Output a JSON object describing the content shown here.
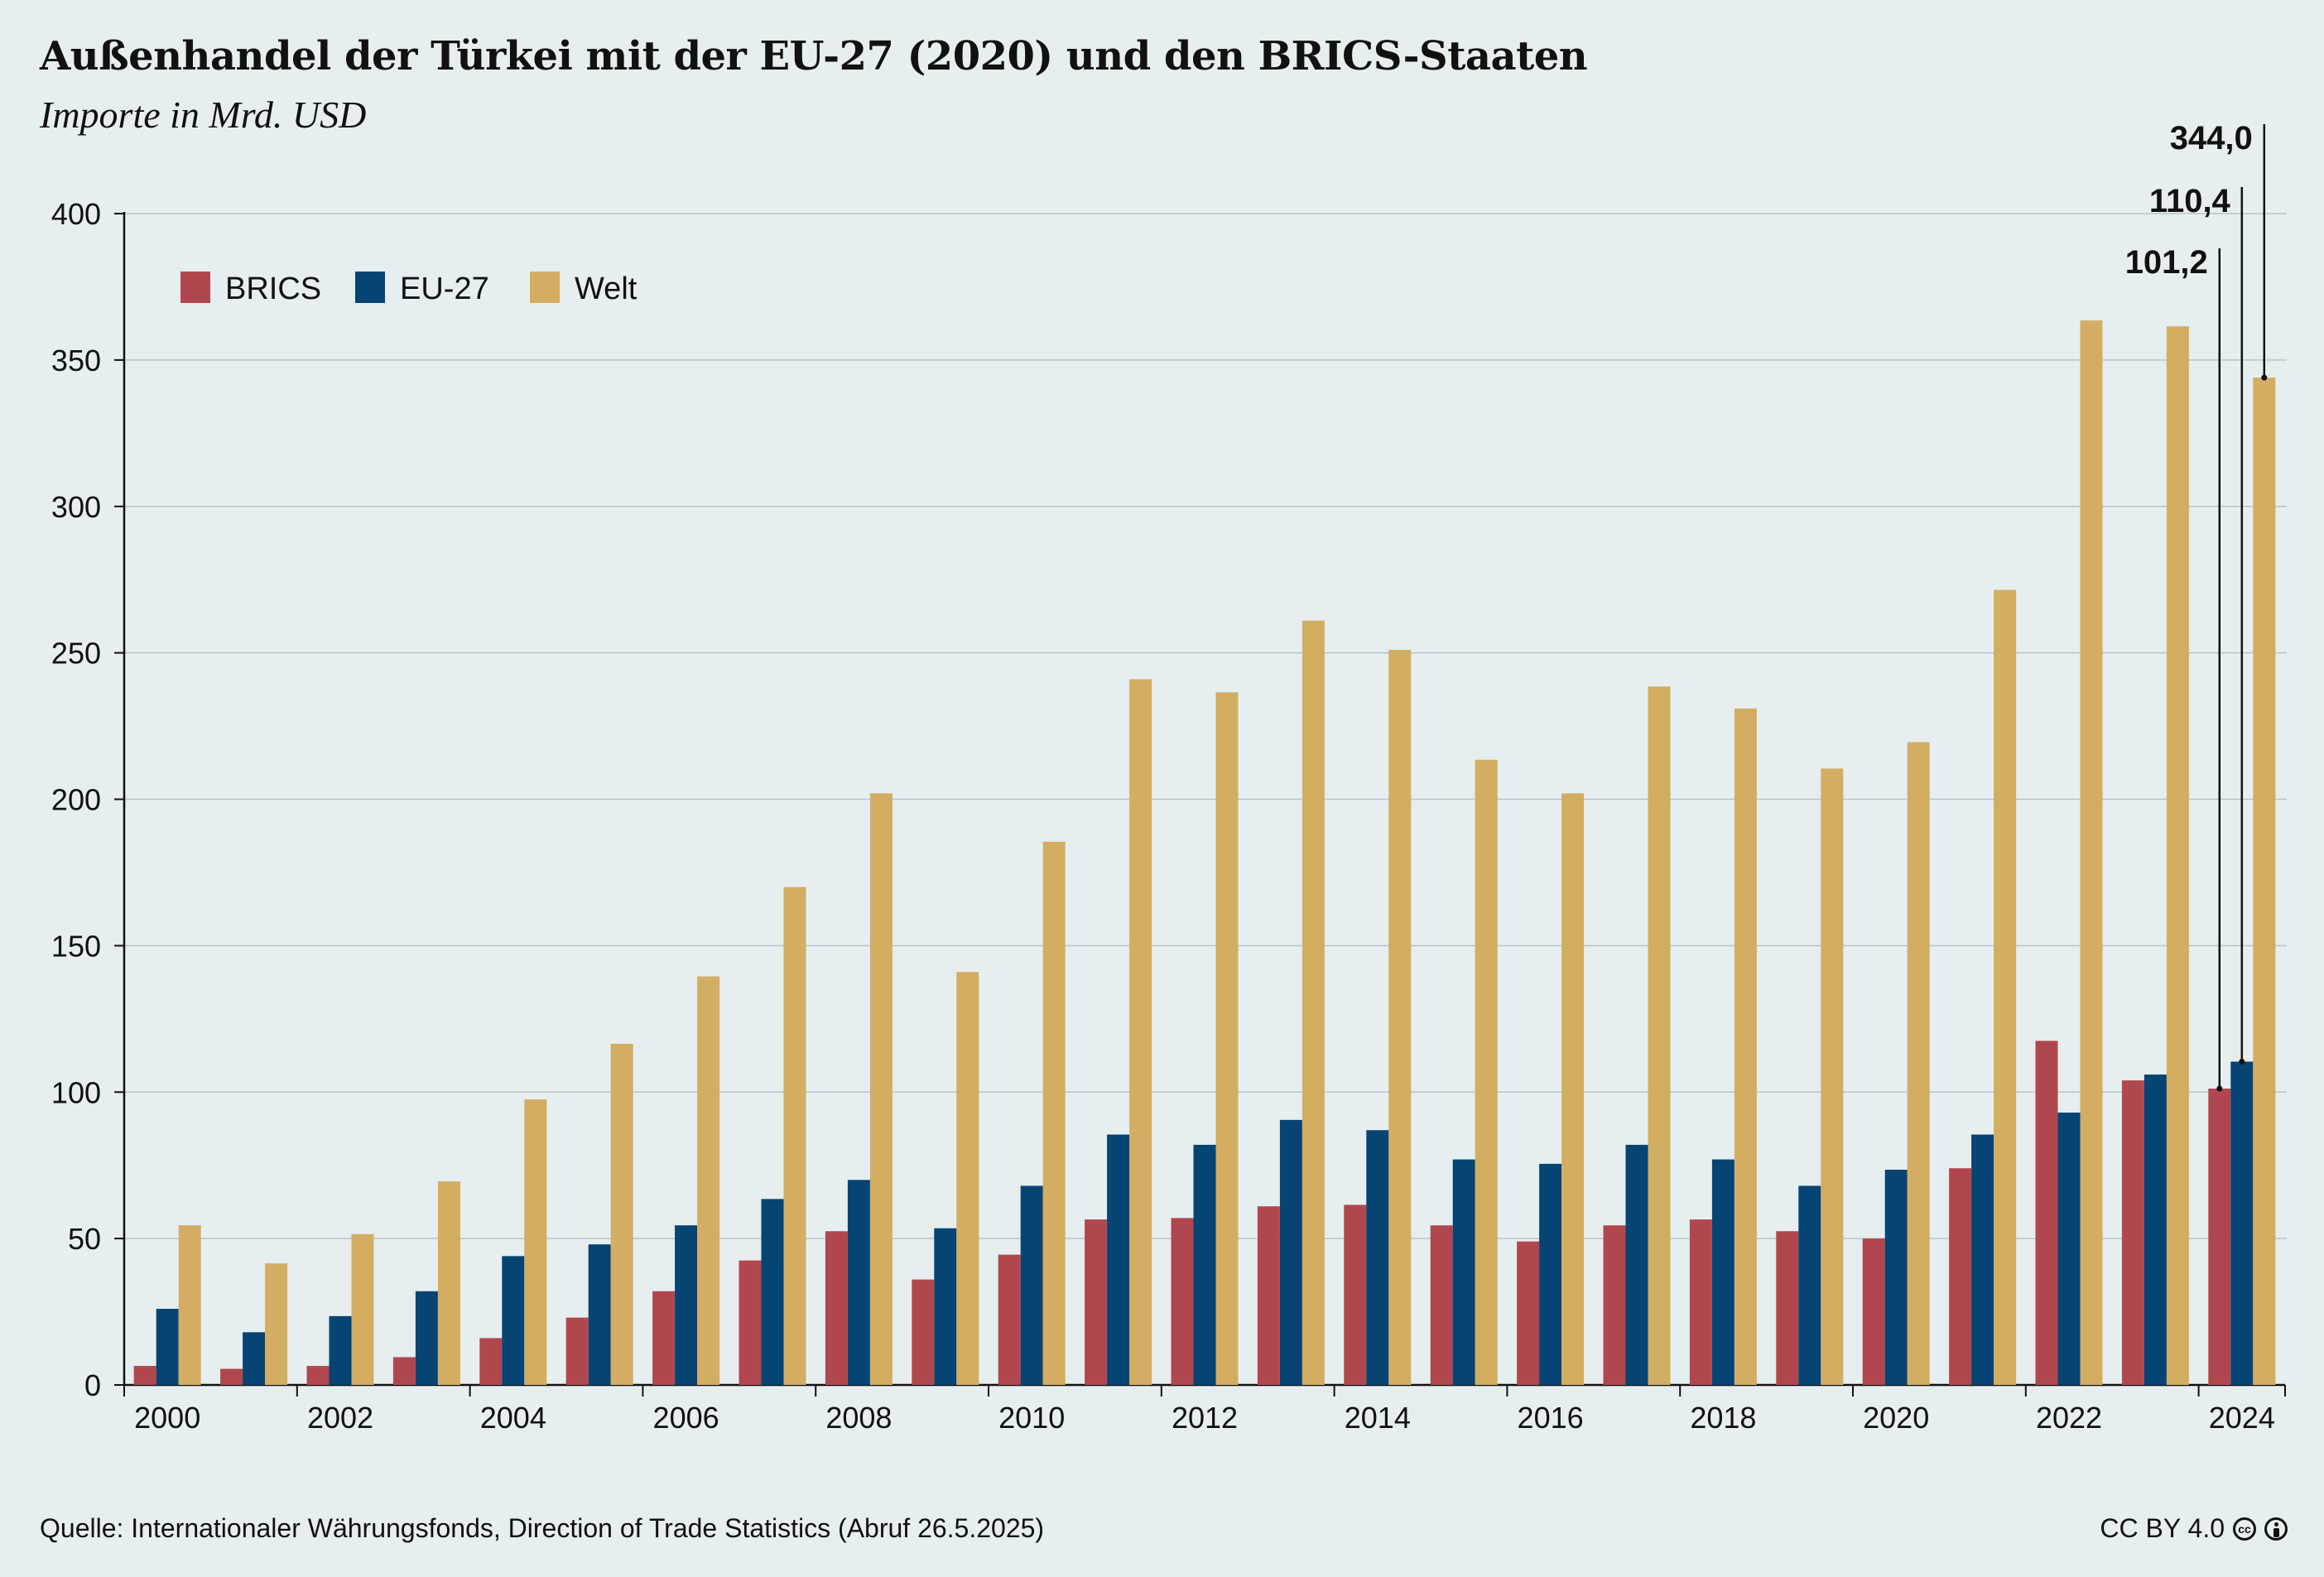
{
  "title": "Außenhandel der Türkei mit der EU-27 (2020) und den BRICS-Staaten",
  "subtitle": "Importe in Mrd. USD",
  "source": "Quelle: Internationaler Währungsfonds, Direction of Trade Statistics (Abruf 26.5.2025)",
  "license": "CC BY 4.0",
  "colors": {
    "BRICS": "#b1474e",
    "EU-27": "#054473",
    "Welt": "#d2ad62",
    "grid": "#b9c4c8",
    "axis": "#111111"
  },
  "chart_data": {
    "type": "bar",
    "categories": [
      "2000",
      "2001",
      "2002",
      "2003",
      "2004",
      "2005",
      "2006",
      "2007",
      "2008",
      "2009",
      "2010",
      "2011",
      "2012",
      "2013",
      "2014",
      "2015",
      "2016",
      "2017",
      "2018",
      "2019",
      "2020",
      "2021",
      "2022",
      "2023",
      "2024"
    ],
    "x_tick_labels": [
      "2000",
      "2002",
      "2004",
      "2006",
      "2008",
      "2010",
      "2012",
      "2014",
      "2016",
      "2018",
      "2020",
      "2022",
      "2024"
    ],
    "y_ticks": [
      0,
      50,
      100,
      150,
      200,
      250,
      300,
      350,
      400
    ],
    "ylim": [
      0,
      400
    ],
    "grid": true,
    "legend_position": "top-left",
    "series": [
      {
        "name": "BRICS",
        "values": [
          6.5,
          5.5,
          6.5,
          9.5,
          16,
          23,
          32,
          42.5,
          52.5,
          36,
          44.5,
          56.5,
          57,
          61,
          61.5,
          54.5,
          49,
          54.5,
          56.5,
          52.5,
          50,
          74,
          117.5,
          104,
          101.2
        ]
      },
      {
        "name": "EU-27",
        "values": [
          26,
          18,
          23.5,
          32,
          44,
          48,
          54.5,
          63.5,
          70,
          53.5,
          68,
          85.5,
          82,
          90.5,
          87,
          77,
          75.5,
          82,
          77,
          68,
          73.5,
          85.5,
          93,
          106,
          110.4
        ]
      },
      {
        "name": "Welt",
        "values": [
          54.5,
          41.5,
          51.5,
          69.5,
          97.5,
          116.5,
          139.5,
          170,
          202,
          141,
          185.5,
          241,
          236.5,
          261,
          251,
          213.5,
          202,
          238.5,
          231,
          210.5,
          219.5,
          271.5,
          363.5,
          361.5,
          344.0
        ]
      }
    ],
    "annotations": [
      {
        "series": "Welt",
        "category": "2024",
        "label": "344,0"
      },
      {
        "series": "EU-27",
        "category": "2024",
        "label": "110,4"
      },
      {
        "series": "BRICS",
        "category": "2024",
        "label": "101,2"
      }
    ]
  }
}
